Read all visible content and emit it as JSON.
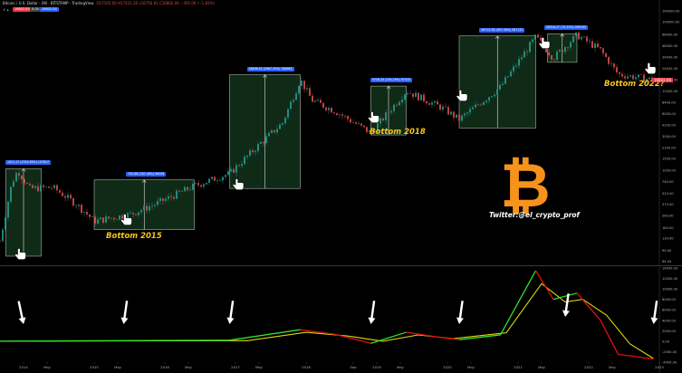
{
  "header": {
    "symbol_line": "Bitcoin / U.S. Dollar · 2W · BITSTAMP · TradingView",
    "ohlc_line": "O17105.00 H17415.26 L16750.62 C16802.00 −305.00 (−1.81%)",
    "chip_a": "16802.00",
    "chip_b": "0.00",
    "chip_c": "16802.00",
    "sub_label": "× ▴"
  },
  "colors": {
    "up": "#26a69a",
    "down": "#ef5350",
    "box_fill": "#0f2a16",
    "box_line": "#c9d6c9",
    "label_bg": "#2962ff",
    "annotation": "#f5c518",
    "bitcoin_orange": "#f7931a",
    "ind_green": "#33e02e",
    "ind_red": "#e01010",
    "ind_yellow": "#d8d80a"
  },
  "annotations": {
    "bottom_2015": "Bottom 2015",
    "bottom_2018": "Bottom 2018",
    "bottom_2022": "Bottom 2022?",
    "twitter": "Twitter:@el_crypto_prof"
  },
  "icons": [
    "bitcoin-logo",
    "hand-pointer-icon",
    "arrow-down-icon"
  ],
  "current_price_tag": "16802.00",
  "chart_data": [
    {
      "type": "candlestick",
      "title": "",
      "scale": "log",
      "x_range": [
        "2013-09",
        "2023-01"
      ],
      "y_range": [
        60,
        140000
      ],
      "x_ticks": [
        "2014",
        "May",
        "2015",
        "May",
        "2016",
        "May",
        "2017",
        "May",
        "2018",
        "Sep",
        "2019",
        "May",
        "2020",
        "May",
        "2021",
        "May",
        "2022",
        "May",
        "2023"
      ],
      "y_ticks": [
        "140000.00",
        "100000.00",
        "68000.00",
        "48000.00",
        "34000.00",
        "24000.00",
        "17000.00",
        "12000.00",
        "8400.00",
        "6000.00",
        "4200.00",
        "3000.00",
        "2100.00",
        "1500.00",
        "1050.00",
        "740.00",
        "520.00",
        "370.00",
        "260.00",
        "180.00",
        "130.00",
        "90.00",
        "64.00"
      ],
      "close_path": [
        {
          "t": "2013-09",
          "v": 120
        },
        {
          "t": "2013-11",
          "v": 700
        },
        {
          "t": "2013-12",
          "v": 1050
        },
        {
          "t": "2014-02",
          "v": 600
        },
        {
          "t": "2014-06",
          "v": 620
        },
        {
          "t": "2014-10",
          "v": 370
        },
        {
          "t": "2015-01",
          "v": 220
        },
        {
          "t": "2015-07",
          "v": 270
        },
        {
          "t": "2015-11",
          "v": 360
        },
        {
          "t": "2016-06",
          "v": 650
        },
        {
          "t": "2016-12",
          "v": 950
        },
        {
          "t": "2017-05",
          "v": 2300
        },
        {
          "t": "2017-09",
          "v": 4500
        },
        {
          "t": "2017-12",
          "v": 17000
        },
        {
          "t": "2018-02",
          "v": 9000
        },
        {
          "t": "2018-06",
          "v": 6400
        },
        {
          "t": "2018-12",
          "v": 3300
        },
        {
          "t": "2019-06",
          "v": 12000
        },
        {
          "t": "2019-12",
          "v": 7200
        },
        {
          "t": "2020-03",
          "v": 5000
        },
        {
          "t": "2020-10",
          "v": 13500
        },
        {
          "t": "2021-04",
          "v": 63000
        },
        {
          "t": "2021-07",
          "v": 33000
        },
        {
          "t": "2021-11",
          "v": 67000
        },
        {
          "t": "2022-03",
          "v": 42000
        },
        {
          "t": "2022-06",
          "v": 20000
        },
        {
          "t": "2022-12",
          "v": 16800
        }
      ],
      "boxes": [
        {
          "label": "1021.17 (1315.89%) 107617",
          "start": "2013-10",
          "end": "2014-04",
          "low": 75,
          "high": 1100
        },
        {
          "label": "792.88 (287.48%) 96558",
          "start": "2015-01",
          "end": "2016-06",
          "low": 170,
          "high": 780
        },
        {
          "label": "18898.42 (2967.33%) 188985",
          "start": "2016-12",
          "end": "2017-12",
          "low": 600,
          "high": 19700
        },
        {
          "label": "9756.34 (294.29%) 97533",
          "start": "2018-12",
          "end": "2019-06",
          "low": 3100,
          "high": 13900
        },
        {
          "label": "56713.38 (657.39%) 567133",
          "start": "2020-03",
          "end": "2021-04",
          "low": 3850,
          "high": 64800
        },
        {
          "label": "28916.27 (75.35%) 289163",
          "start": "2021-06",
          "end": "2021-11",
          "low": 28800,
          "high": 69000
        }
      ]
    },
    {
      "type": "line",
      "title": "",
      "y_range": [
        -4000,
        14000
      ],
      "y_ticks": [
        "14000.00",
        "12000.00",
        "10000.00",
        "8000.00",
        "6000.00",
        "4000.00",
        "2000.00",
        "0.00",
        "-2000.00",
        "-4000.00"
      ],
      "series": [
        {
          "values": [
            {
              "t": "2013-09",
              "v": 0
            },
            {
              "t": "2016-12",
              "v": 200
            },
            {
              "t": "2017-12",
              "v": 2200
            },
            {
              "t": "2018-06",
              "v": 1300
            },
            {
              "t": "2018-12",
              "v": -400
            },
            {
              "t": "2019-06",
              "v": 1700
            },
            {
              "t": "2019-12",
              "v": 700
            },
            {
              "t": "2020-03",
              "v": 300
            },
            {
              "t": "2020-10",
              "v": 1200
            },
            {
              "t": "2021-04",
              "v": 13500
            },
            {
              "t": "2021-07",
              "v": 8000
            },
            {
              "t": "2021-11",
              "v": 9200
            },
            {
              "t": "2022-03",
              "v": 4000
            },
            {
              "t": "2022-06",
              "v": -2500
            },
            {
              "t": "2022-12",
              "v": -3400
            }
          ]
        },
        {
          "values": [
            {
              "t": "2013-09",
              "v": 0
            },
            {
              "t": "2017-03",
              "v": 100
            },
            {
              "t": "2018-01",
              "v": 1700
            },
            {
              "t": "2018-08",
              "v": 1000
            },
            {
              "t": "2019-02",
              "v": 0
            },
            {
              "t": "2019-08",
              "v": 1200
            },
            {
              "t": "2020-02",
              "v": 500
            },
            {
              "t": "2020-11",
              "v": 1600
            },
            {
              "t": "2021-05",
              "v": 11000
            },
            {
              "t": "2021-09",
              "v": 7500
            },
            {
              "t": "2021-12",
              "v": 8000
            },
            {
              "t": "2022-04",
              "v": 5000
            },
            {
              "t": "2022-08",
              "v": -500
            },
            {
              "t": "2022-12",
              "v": -3300
            }
          ]
        }
      ],
      "arrows_at": [
        "2014-01",
        "2015-06",
        "2016-12",
        "2018-12",
        "2020-03",
        "2021-09",
        "2022-12"
      ]
    }
  ]
}
